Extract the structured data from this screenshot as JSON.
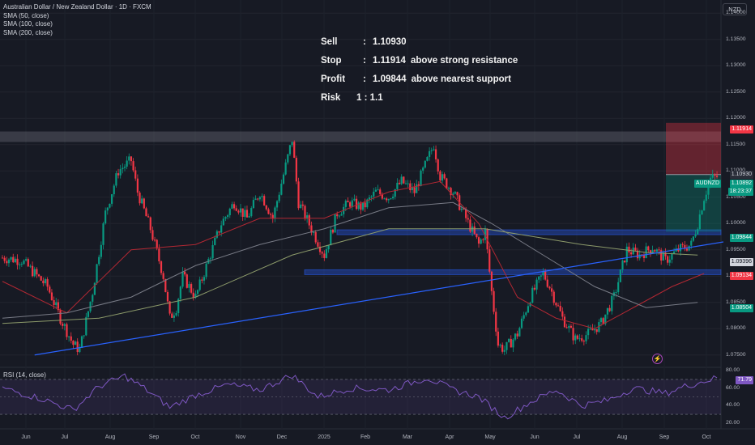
{
  "legend": {
    "title": "Australian Dollar / New Zealand Dollar · 1D · FXCM",
    "sma50": "SMA (50, close)",
    "sma100": "SMA (100, close)",
    "sma200": "SMA (200, close)"
  },
  "currency_button": "NZD",
  "trade": {
    "sell_label": "Sell",
    "sell_value": "1.10930",
    "stop_label": "Stop",
    "stop_value": "1.11914",
    "stop_note": "above strong resistance",
    "profit_label": "Profit",
    "profit_value": "1.09844",
    "profit_note": "above nearest support",
    "risk_label": "Risk",
    "risk_value": "1 : 1.1",
    "colon": ":"
  },
  "rsi_label": "RSI (14, close)",
  "tags": {
    "stop": "1.11914",
    "entry": "1.10930",
    "symbol": "AUDNZD",
    "last": "1.10892",
    "countdown": "18:23:37",
    "target": "1.09844",
    "sma_a": "1.09396",
    "support": "1.09134",
    "sma_b": "1.08504",
    "rsi_value": "71.79"
  },
  "colors": {
    "bull": "#089981",
    "bear": "#f23645",
    "sma50": "#b22833",
    "sma100": "#787b86",
    "sma200": "#8c9a6a",
    "trend": "#2962ff",
    "zone": "#2962ff",
    "resistance": "#787b86"
  },
  "chart_data": {
    "type": "candlestick",
    "symbol": "Australian Dollar / New Zealand Dollar",
    "interval": "1D",
    "y_axis": {
      "ylim": [
        1.0725,
        1.1425
      ],
      "ticks": [
        "1.14000",
        "1.13500",
        "1.13000",
        "1.12500",
        "1.12000",
        "1.11500",
        "1.11000",
        "1.10500",
        "1.10000",
        "1.09500",
        "1.09000",
        "1.08500",
        "1.08000",
        "1.07500"
      ]
    },
    "x_axis": {
      "ticks": [
        "Jun",
        "Jul",
        "Aug",
        "Sep",
        "Oct",
        "Nov",
        "Dec",
        "2025",
        "Feb",
        "Mar",
        "Apr",
        "May",
        "Jun",
        "Jul",
        "Aug",
        "Sep",
        "Oct"
      ]
    },
    "price_path": [
      [
        0,
        1.0935
      ],
      [
        3,
        1.093
      ],
      [
        7,
        1.088
      ],
      [
        9,
        1.082
      ],
      [
        11,
        1.077
      ],
      [
        12,
        1.076
      ],
      [
        14,
        1.087
      ],
      [
        16,
        1.102
      ],
      [
        18,
        1.11
      ],
      [
        20,
        1.112
      ],
      [
        21,
        1.106
      ],
      [
        23,
        1.099
      ],
      [
        25,
        1.09
      ],
      [
        26,
        1.082
      ],
      [
        27,
        1.084
      ],
      [
        28,
        1.09
      ],
      [
        29,
        1.088
      ],
      [
        30,
        1.086
      ],
      [
        32,
        1.093
      ],
      [
        34,
        1.1
      ],
      [
        36,
        1.104
      ],
      [
        38,
        1.101
      ],
      [
        40,
        1.106
      ],
      [
        42,
        1.101
      ],
      [
        44,
        1.111
      ],
      [
        45,
        1.116
      ],
      [
        46,
        1.104
      ],
      [
        48,
        1.099
      ],
      [
        50,
        1.094
      ],
      [
        52,
        1.102
      ],
      [
        54,
        1.104
      ],
      [
        56,
        1.103
      ],
      [
        58,
        1.106
      ],
      [
        60,
        1.105
      ],
      [
        62,
        1.108
      ],
      [
        64,
        1.106
      ],
      [
        66,
        1.112
      ],
      [
        67,
        1.115
      ],
      [
        68,
        1.109
      ],
      [
        70,
        1.106
      ],
      [
        72,
        1.101
      ],
      [
        74,
        1.096
      ],
      [
        75,
        1.0985
      ],
      [
        76,
        1.087
      ],
      [
        77,
        1.077
      ],
      [
        78,
        1.076
      ],
      [
        80,
        1.079
      ],
      [
        82,
        1.086
      ],
      [
        84,
        1.0905
      ],
      [
        85,
        1.088
      ],
      [
        87,
        1.082
      ],
      [
        89,
        1.078
      ],
      [
        91,
        1.079
      ],
      [
        93,
        1.081
      ],
      [
        95,
        1.086
      ],
      [
        97,
        1.095
      ],
      [
        99,
        1.094
      ],
      [
        101,
        1.0955
      ],
      [
        103,
        1.093
      ],
      [
        105,
        1.095
      ],
      [
        107,
        1.096
      ],
      [
        108,
        1.1
      ],
      [
        109,
        1.105
      ],
      [
        110,
        1.1085
      ],
      [
        111,
        1.1089
      ]
    ],
    "sma50": [
      [
        0,
        1.089
      ],
      [
        10,
        1.083
      ],
      [
        20,
        1.095
      ],
      [
        30,
        1.096
      ],
      [
        40,
        1.101
      ],
      [
        50,
        1.101
      ],
      [
        60,
        1.106
      ],
      [
        68,
        1.108
      ],
      [
        74,
        1.1
      ],
      [
        80,
        1.086
      ],
      [
        86,
        1.082
      ],
      [
        92,
        1.08
      ],
      [
        98,
        1.084
      ],
      [
        104,
        1.088
      ],
      [
        109,
        1.0905
      ]
    ],
    "sma100": [
      [
        0,
        1.082
      ],
      [
        10,
        1.083
      ],
      [
        20,
        1.086
      ],
      [
        30,
        1.092
      ],
      [
        40,
        1.096
      ],
      [
        50,
        1.099
      ],
      [
        60,
        1.103
      ],
      [
        70,
        1.104
      ],
      [
        76,
        1.1
      ],
      [
        84,
        1.094
      ],
      [
        92,
        1.088
      ],
      [
        100,
        1.084
      ],
      [
        108,
        1.085
      ]
    ],
    "sma200": [
      [
        0,
        1.081
      ],
      [
        15,
        1.082
      ],
      [
        30,
        1.086
      ],
      [
        45,
        1.094
      ],
      [
        60,
        1.099
      ],
      [
        75,
        1.099
      ],
      [
        90,
        1.096
      ],
      [
        100,
        1.0945
      ],
      [
        108,
        1.094
      ]
    ],
    "trendline": [
      [
        5,
        1.075
      ],
      [
        112,
        1.0965
      ]
    ],
    "resistance_zone": [
      1.1155,
      1.1175
    ],
    "support_zones": [
      [
        1.098,
        1.0988
      ],
      [
        1.0904,
        1.0912
      ]
    ],
    "trade_box": {
      "entry": 1.1093,
      "stop": 1.11914,
      "target": 1.09844
    },
    "rsi": {
      "title": "RSI (14, close)",
      "ticks": [
        "80.00",
        "60.00",
        "40.00",
        "20.00"
      ],
      "ylim": [
        18,
        82
      ],
      "band": [
        30,
        70
      ],
      "last": 71.79,
      "path": [
        [
          0,
          60
        ],
        [
          6,
          48
        ],
        [
          11,
          35
        ],
        [
          15,
          62
        ],
        [
          19,
          74
        ],
        [
          22,
          60
        ],
        [
          26,
          38
        ],
        [
          30,
          52
        ],
        [
          35,
          64
        ],
        [
          40,
          58
        ],
        [
          45,
          75
        ],
        [
          49,
          50
        ],
        [
          54,
          60
        ],
        [
          60,
          58
        ],
        [
          66,
          72
        ],
        [
          70,
          58
        ],
        [
          74,
          50
        ],
        [
          78,
          26
        ],
        [
          82,
          44
        ],
        [
          86,
          58
        ],
        [
          90,
          40
        ],
        [
          94,
          46
        ],
        [
          98,
          60
        ],
        [
          103,
          54
        ],
        [
          106,
          62
        ],
        [
          109,
          68
        ],
        [
          111,
          71.79
        ]
      ]
    }
  }
}
